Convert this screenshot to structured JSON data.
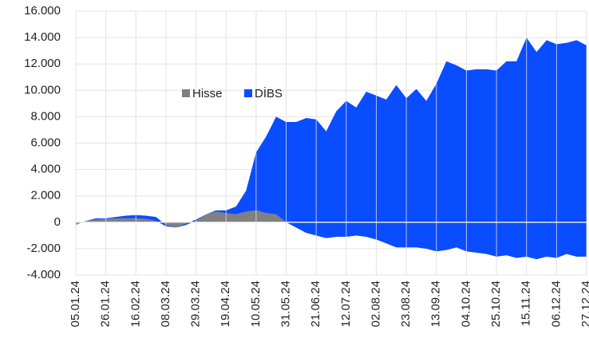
{
  "chart_data": {
    "type": "stacked-area",
    "categories": [
      "05.01.24",
      null,
      null,
      "26.01.24",
      null,
      null,
      "16.02.24",
      null,
      null,
      "08.03.24",
      null,
      null,
      "29.03.24",
      null,
      null,
      "19.04.24",
      null,
      null,
      "10.05.24",
      null,
      null,
      "31.05.24",
      null,
      null,
      "21.06.24",
      null,
      null,
      "12.07.24",
      null,
      null,
      "02.08.24",
      null,
      null,
      "23.08.24",
      null,
      null,
      "13.09.24",
      null,
      null,
      "04.10.24",
      null,
      null,
      "25.10.24",
      null,
      null,
      "15.11.24",
      null,
      null,
      "06.12.24",
      null,
      null,
      "27.12.24"
    ],
    "series": [
      {
        "name": "Hisse",
        "color": "#808080",
        "values": [
          -200,
          100,
          200,
          250,
          300,
          300,
          300,
          250,
          100,
          -300,
          -400,
          -200,
          100,
          600,
          800,
          700,
          600,
          800,
          900,
          700,
          600,
          0,
          -400,
          -800,
          -1000,
          -1200,
          -1100,
          -1100,
          -1000,
          -1100,
          -1300,
          -1600,
          -1900,
          -1900,
          -1900,
          -2000,
          -2200,
          -2100,
          -1900,
          -2200,
          -2300,
          -2400,
          -2600,
          -2500,
          -2700,
          -2600,
          -2800,
          -2600,
          -2700,
          -2400,
          -2600,
          -2600
        ]
      },
      {
        "name": "DİBS",
        "color": "#0a4cff",
        "values": [
          0,
          0,
          100,
          50,
          100,
          200,
          250,
          250,
          300,
          100,
          0,
          100,
          100,
          0,
          100,
          200,
          600,
          1600,
          4400,
          5800,
          7400,
          7600,
          8000,
          8700,
          8800,
          8100,
          9500,
          10300,
          9700,
          11000,
          10900,
          10900,
          12300,
          11300,
          12000,
          11200,
          12700,
          14300,
          13800,
          13700,
          13900,
          14000,
          14100,
          14700,
          14900,
          16600,
          15700,
          16400,
          16200,
          16000,
          16400,
          16000
        ]
      }
    ],
    "ylim": [
      -4000,
      16000
    ],
    "yticks": [
      {
        "value": -4000,
        "label": "-4.000"
      },
      {
        "value": -2000,
        "label": "-2.000"
      },
      0,
      {
        "value": 2000,
        "label": "2.000"
      },
      {
        "value": 4000,
        "label": "4.000"
      },
      {
        "value": 6000,
        "label": "6.000"
      },
      {
        "value": 8000,
        "label": "8.000"
      },
      {
        "value": 10000,
        "label": "10.000"
      },
      {
        "value": 12000,
        "label": "12.000"
      },
      {
        "value": 14000,
        "label": "14.000"
      },
      {
        "value": 16000,
        "label": "16.000"
      }
    ],
    "grid": true,
    "stacked": true
  }
}
